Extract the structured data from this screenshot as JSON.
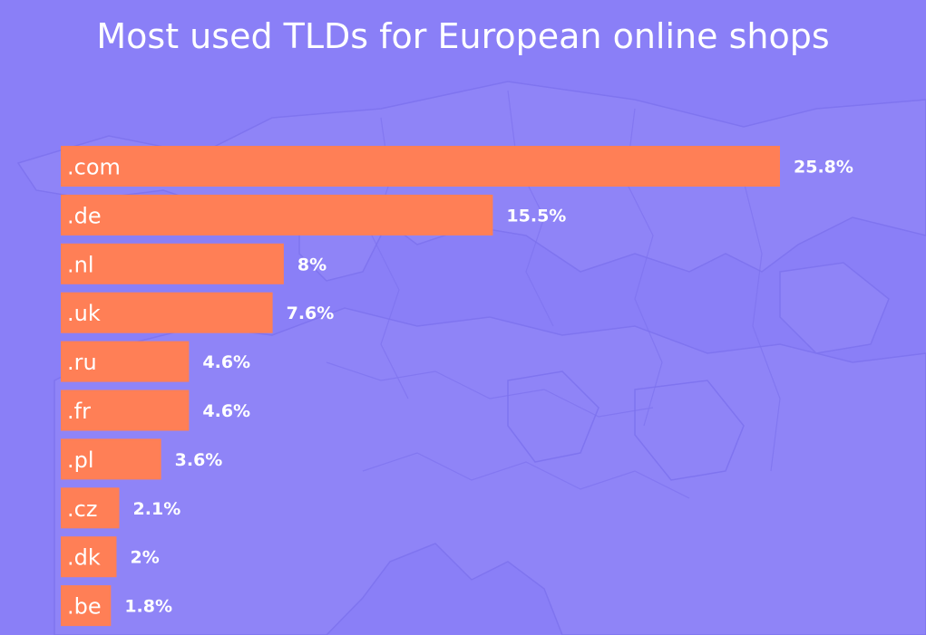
{
  "colors": {
    "background": "#8a7ff7",
    "bar": "#ff7f56",
    "text": "#ffffff"
  },
  "chart_data": {
    "type": "bar",
    "orientation": "horizontal",
    "title": "Most used TLDs for European online shops",
    "categories": [
      ".com",
      ".de",
      ".nl",
      ".uk",
      ".ru",
      ".fr",
      ".pl",
      ".cz",
      ".dk",
      ".be"
    ],
    "values": [
      25.8,
      15.5,
      8,
      7.6,
      4.6,
      4.6,
      3.6,
      2.1,
      2,
      1.8
    ],
    "value_labels": [
      "25.8%",
      "15.5%",
      "8%",
      "7.6%",
      "4.6%",
      "4.6%",
      "3.6%",
      "2.1%",
      "2%",
      "1.8%"
    ],
    "xlabel": "",
    "ylabel": "",
    "grid": false,
    "legend": "none"
  }
}
